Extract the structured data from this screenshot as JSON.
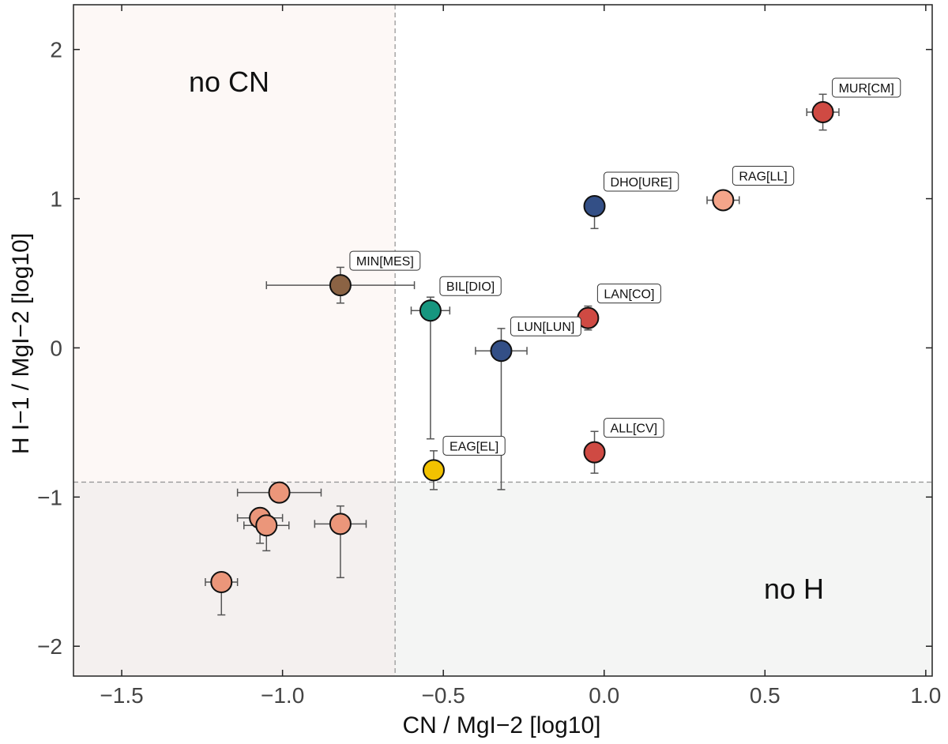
{
  "chart_data": {
    "type": "scatter",
    "xlabel": "CN / MgI−2 [log10]",
    "ylabel": "H I−1 / MgI−2 [log10]",
    "xlim": [
      -1.65,
      1.02
    ],
    "ylim": [
      -2.2,
      2.3
    ],
    "xticks": [
      -1.5,
      -1.0,
      -0.5,
      0.0,
      0.5,
      1.0
    ],
    "xtick_labels": [
      "−1.5",
      "−1.0",
      "−0.5",
      "0.0",
      "0.5",
      "1.0"
    ],
    "yticks": [
      -2,
      -1,
      0,
      1,
      2
    ],
    "ytick_labels": [
      "−2",
      "−1",
      "0",
      "1",
      "2"
    ],
    "thresholds": {
      "x": -0.65,
      "y": -0.9
    },
    "regions": [
      {
        "name": "no CN",
        "label": "no CN",
        "color": "#fdf8f6"
      },
      {
        "name": "no H",
        "label": "no H",
        "color": "#f4f5f4"
      },
      {
        "name": "both",
        "label": "",
        "color": "#f4f0ef"
      }
    ],
    "points": [
      {
        "label": "MUR[CM]",
        "x": 0.68,
        "y": 1.58,
        "xerr": [
          0.05,
          0.05
        ],
        "yerr": [
          0.12,
          0.12
        ],
        "color": "#cf4a43"
      },
      {
        "label": "RAG[LL]",
        "x": 0.37,
        "y": 0.99,
        "xerr": [
          0.05,
          0.05
        ],
        "yerr": [
          0.05,
          0.05
        ],
        "color": "#f4a58a"
      },
      {
        "label": "DHO[URE]",
        "x": -0.03,
        "y": 0.95,
        "xerr": [
          0,
          0
        ],
        "yerr": [
          0.15,
          0
        ],
        "color": "#334f86"
      },
      {
        "label": "MIN[MES]",
        "x": -0.82,
        "y": 0.42,
        "xerr": [
          0.23,
          0.23
        ],
        "yerr": [
          0.12,
          0.12
        ],
        "color": "#8b6344"
      },
      {
        "label": "BIL[DIO]",
        "x": -0.54,
        "y": 0.25,
        "xerr": [
          0.06,
          0.06
        ],
        "yerr": [
          0.86,
          0.09
        ],
        "color": "#16967f"
      },
      {
        "label": "LAN[CO]",
        "x": -0.05,
        "y": 0.2,
        "xerr": [
          0.03,
          0.03
        ],
        "yerr": [
          0.08,
          0.08
        ],
        "color": "#cf4a43"
      },
      {
        "label": "LUN[LUN]",
        "x": -0.32,
        "y": -0.02,
        "xerr": [
          0.08,
          0.08
        ],
        "yerr": [
          0.93,
          0.15
        ],
        "color": "#334f86"
      },
      {
        "label": "ALL[CV]",
        "x": -0.03,
        "y": -0.7,
        "xerr": [
          0,
          0
        ],
        "yerr": [
          0.14,
          0.14
        ],
        "color": "#cf4a43"
      },
      {
        "label": "EAG[EL]",
        "x": -0.53,
        "y": -0.82,
        "xerr": [
          0,
          0
        ],
        "yerr": [
          0.13,
          0.13
        ],
        "color": "#f2c200"
      },
      {
        "label": "",
        "x": -1.01,
        "y": -0.97,
        "xerr": [
          0.13,
          0.13
        ],
        "yerr": [
          0.05,
          0.05
        ],
        "color": "#eb967a"
      },
      {
        "label": "",
        "x": -1.07,
        "y": -1.14,
        "xerr": [
          0.07,
          0.07
        ],
        "yerr": [
          0.17,
          0.05
        ],
        "color": "#eb967a"
      },
      {
        "label": "",
        "x": -1.05,
        "y": -1.19,
        "xerr": [
          0.07,
          0.07
        ],
        "yerr": [
          0.17,
          0.05
        ],
        "color": "#eb967a"
      },
      {
        "label": "",
        "x": -0.82,
        "y": -1.18,
        "xerr": [
          0.08,
          0.08
        ],
        "yerr": [
          0.36,
          0.12
        ],
        "color": "#eb967a"
      },
      {
        "label": "",
        "x": -1.19,
        "y": -1.57,
        "xerr": [
          0.05,
          0.05
        ],
        "yerr": [
          0.22,
          0.05
        ],
        "color": "#eb967a"
      }
    ]
  }
}
